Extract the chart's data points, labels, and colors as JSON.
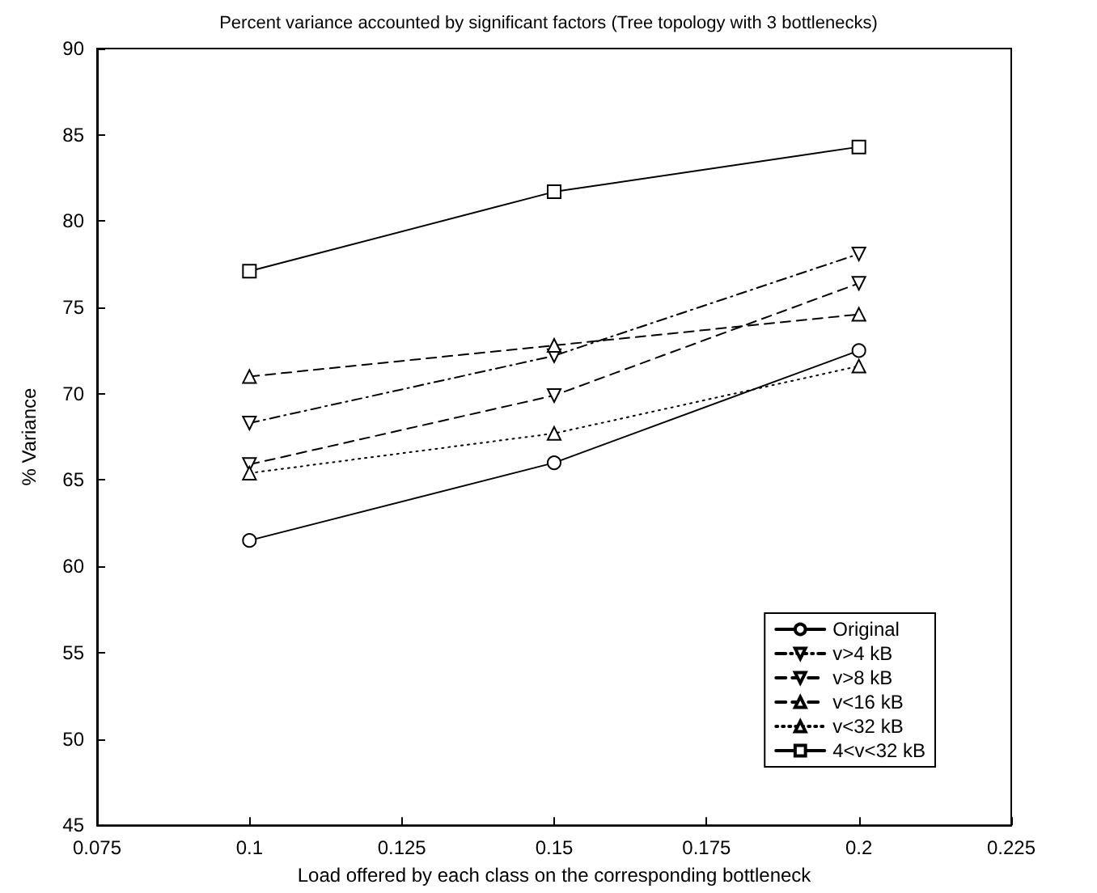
{
  "chart_data": {
    "type": "line",
    "title": "Percent variance accounted by significant factors (Tree topology with 3 bottlenecks)",
    "xlabel": "Load offered by each class on the corresponding bottleneck",
    "ylabel": "% Variance",
    "x": [
      0.1,
      0.15,
      0.2
    ],
    "series": [
      {
        "name": "Original",
        "color": "#000000",
        "marker": "circle",
        "line_style": "solid",
        "values": [
          61.5,
          66.0,
          72.5
        ]
      },
      {
        "name": "v>4 kB",
        "color": "#000000",
        "marker": "triangle_down",
        "line_style": "dashdot",
        "values": [
          68.3,
          72.2,
          78.1
        ]
      },
      {
        "name": "v>8 kB",
        "color": "#000000",
        "marker": "triangle_down",
        "line_style": "dashed",
        "values": [
          65.9,
          69.9,
          76.4
        ]
      },
      {
        "name": "v<16 kB",
        "color": "#000000",
        "marker": "triangle",
        "line_style": "dashed",
        "values": [
          71.0,
          72.8,
          74.6
        ]
      },
      {
        "name": "v<32 kB",
        "color": "#000000",
        "marker": "triangle",
        "line_style": "dotted",
        "values": [
          65.4,
          67.7,
          71.6
        ]
      },
      {
        "name": "4<v<32 kB",
        "color": "#000000",
        "marker": "square",
        "line_style": "solid",
        "values": [
          77.1,
          81.7,
          84.3
        ]
      }
    ],
    "xlim": [
      0.075,
      0.225
    ],
    "xticks": [
      0.075,
      0.1,
      0.125,
      0.15,
      0.175,
      0.2,
      0.225
    ],
    "ylim": [
      45,
      90
    ],
    "yticks": [
      45,
      50,
      55,
      60,
      65,
      70,
      75,
      80,
      85,
      90
    ],
    "grid": false,
    "legend": "bottom right"
  }
}
